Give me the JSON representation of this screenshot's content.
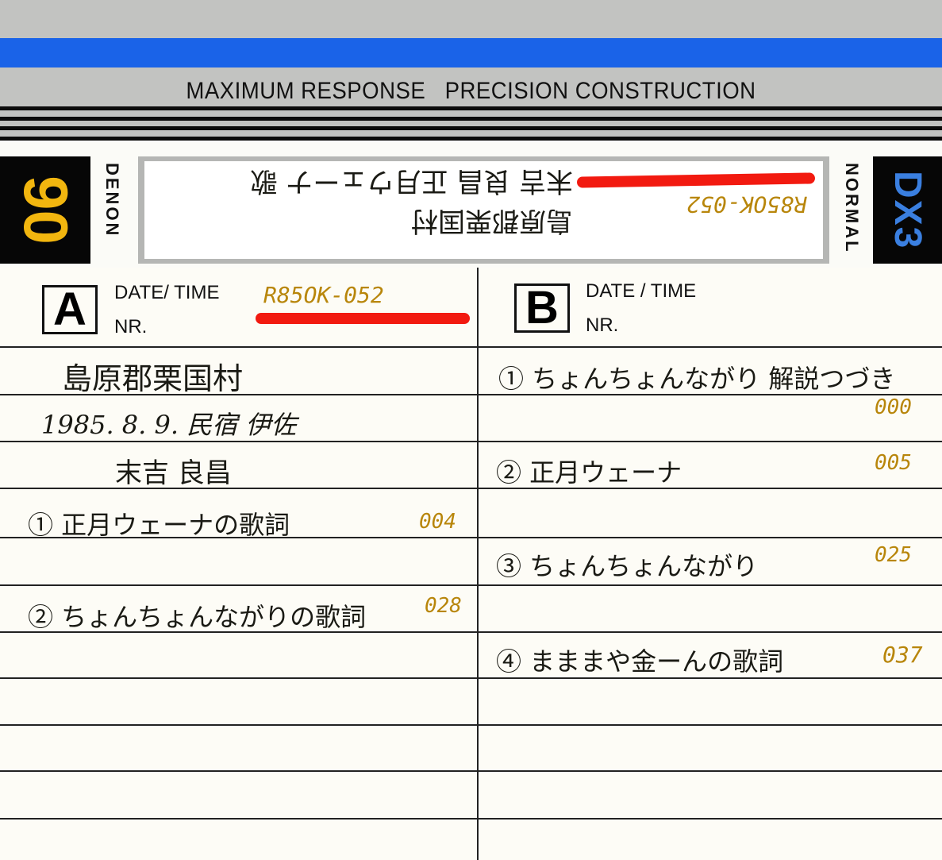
{
  "header": {
    "tagline": "MAXIMUM RESPONSE   PRECISION CONSTRUCTION",
    "length": "90",
    "brand": "DENON",
    "tape_type": "NORMAL",
    "model": "DX3",
    "colors": {
      "stripe": "#1a63e8",
      "length": "#f2b60f",
      "model": "#3a7fe0",
      "band": "#c2c3c1"
    }
  },
  "spine": {
    "line1": "末吉 良昌 正月ウェーナ 歌",
    "line2": "島原郡栗国村",
    "code": "R85OK-052"
  },
  "side_a": {
    "letter": "A",
    "date_label": "DATE/ TIME",
    "nr_label": "NR.",
    "code": "R85OK-052",
    "lines": [
      "島原郡栗国村",
      "1985. 8. 9.  民宿 伊佐",
      "末吉 良昌"
    ],
    "tracks": [
      {
        "title": "① 正月ウェーナの歌詞",
        "counter": "004"
      },
      {
        "title": "② ちょんちょんながりの歌詞",
        "counter": "028"
      }
    ]
  },
  "side_b": {
    "letter": "B",
    "date_label": "DATE / TIME",
    "nr_label": "NR.",
    "tracks": [
      {
        "title": "① ちょんちょんながり 解説つづき",
        "counter": "000"
      },
      {
        "title": "② 正月ウェーナ",
        "counter": "005"
      },
      {
        "title": "③ ちょんちょんながり",
        "counter": "025"
      },
      {
        "title": "④ まままや金ーんの歌詞",
        "counter": "037"
      }
    ]
  }
}
